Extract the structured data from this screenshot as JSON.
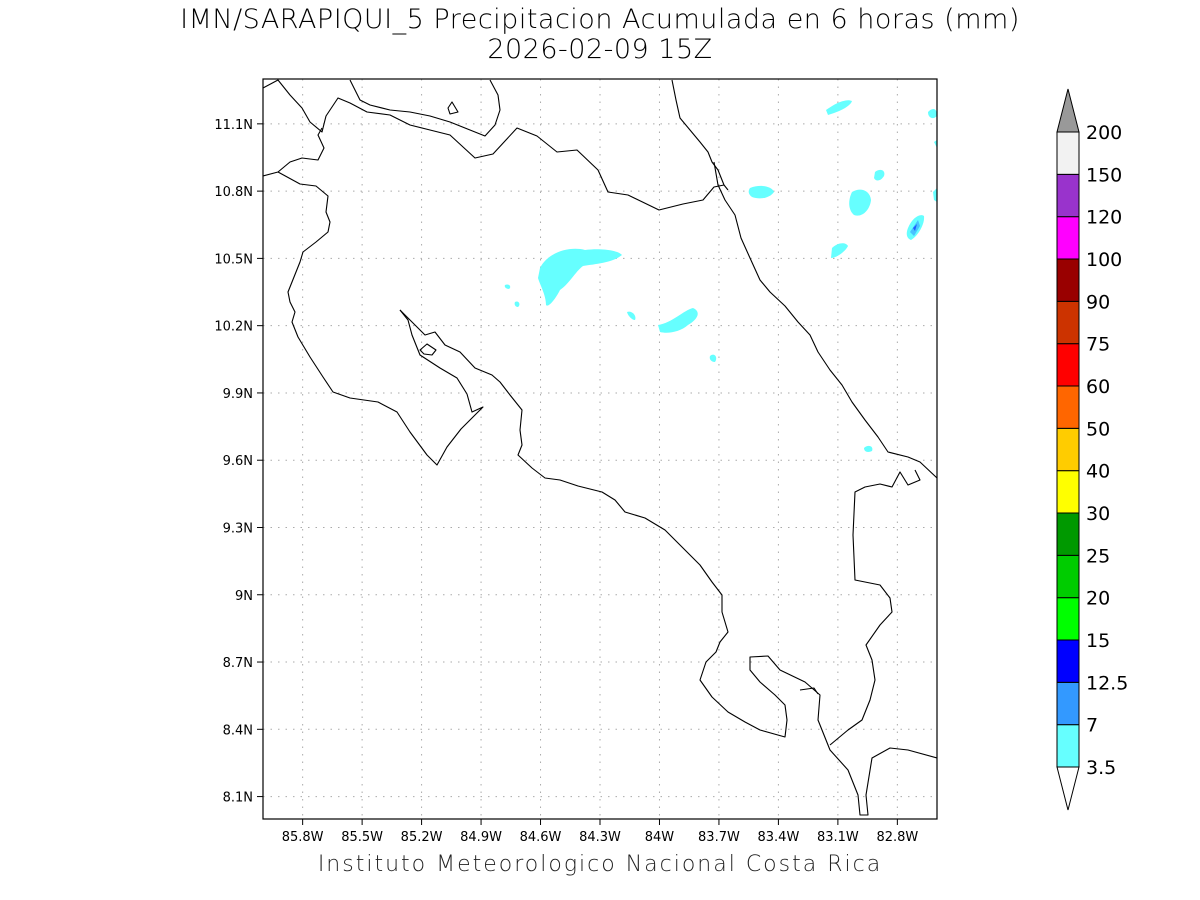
{
  "title": {
    "line1": "IMN/SARAPIQUI_5 Precipitacion Acumulada en 6 horas (mm)",
    "line2": "2026-02-09 15Z"
  },
  "footer": "Instituto Meteorologico Nacional Costa Rica",
  "map": {
    "lon_range": [
      -86.0,
      -82.6
    ],
    "lat_range": [
      8.0,
      11.3
    ],
    "lon_ticks": [
      {
        "value": -85.8,
        "label": "85.8W"
      },
      {
        "value": -85.5,
        "label": "85.5W"
      },
      {
        "value": -85.2,
        "label": "85.2W"
      },
      {
        "value": -84.9,
        "label": "84.9W"
      },
      {
        "value": -84.6,
        "label": "84.6W"
      },
      {
        "value": -84.3,
        "label": "84.3W"
      },
      {
        "value": -84.0,
        "label": "84W"
      },
      {
        "value": -83.7,
        "label": "83.7W"
      },
      {
        "value": -83.4,
        "label": "83.4W"
      },
      {
        "value": -83.1,
        "label": "83.1W"
      },
      {
        "value": -82.8,
        "label": "82.8W"
      }
    ],
    "lat_ticks": [
      {
        "value": 11.1,
        "label": "11.1N"
      },
      {
        "value": 10.8,
        "label": "10.8N"
      },
      {
        "value": 10.5,
        "label": "10.5N"
      },
      {
        "value": 10.2,
        "label": "10.2N"
      },
      {
        "value": 9.9,
        "label": "9.9N"
      },
      {
        "value": 9.6,
        "label": "9.6N"
      },
      {
        "value": 9.3,
        "label": "9.3N"
      },
      {
        "value": 9.0,
        "label": "9N"
      },
      {
        "value": 8.7,
        "label": "8.7N"
      },
      {
        "value": 8.4,
        "label": "8.4N"
      },
      {
        "value": 8.1,
        "label": "8.1N"
      }
    ],
    "grid": true,
    "precip_fill_color": "#66ffff"
  },
  "colorbar": {
    "bins": [
      {
        "label": "3.5",
        "color": "#66ffff"
      },
      {
        "label": "7",
        "color": "#3399ff"
      },
      {
        "label": "12.5",
        "color": "#0000ff"
      },
      {
        "label": "15",
        "color": "#00ff00"
      },
      {
        "label": "20",
        "color": "#00cc00"
      },
      {
        "label": "25",
        "color": "#009900"
      },
      {
        "label": "30",
        "color": "#ffff00"
      },
      {
        "label": "40",
        "color": "#ffcc00"
      },
      {
        "label": "50",
        "color": "#ff6600"
      },
      {
        "label": "60",
        "color": "#ff0000"
      },
      {
        "label": "75",
        "color": "#cc3300"
      },
      {
        "label": "90",
        "color": "#990000"
      },
      {
        "label": "100",
        "color": "#ff00ff"
      },
      {
        "label": "120",
        "color": "#9933cc"
      },
      {
        "label": "150",
        "color": "#f2f2f2"
      },
      {
        "label": "200",
        "color": "#999999"
      }
    ],
    "under_color": "#ffffff",
    "over_color": "#999999"
  }
}
